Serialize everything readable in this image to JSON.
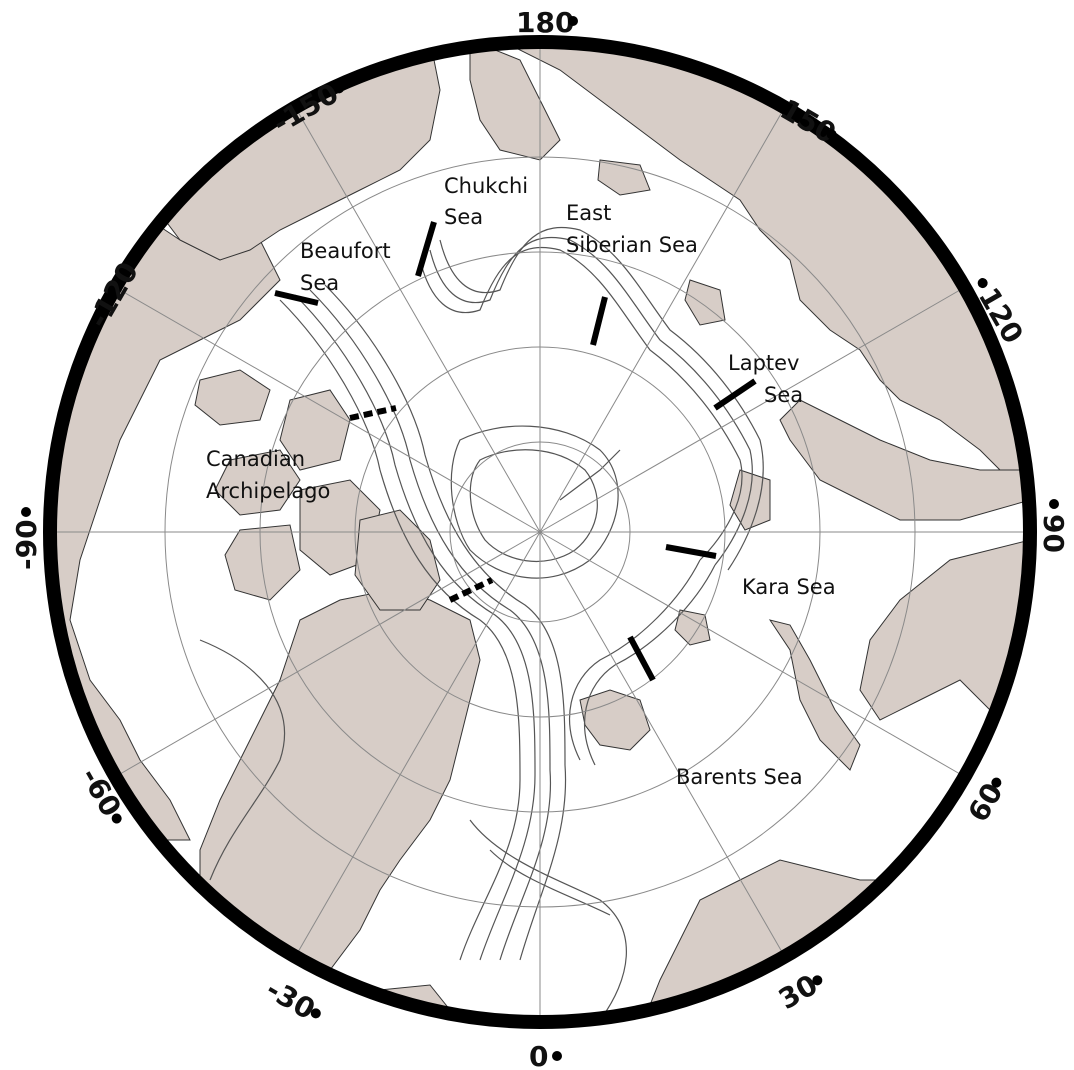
{
  "map": {
    "projection": "north-polar-stereographic",
    "colors": {
      "land": "#d7cdc7",
      "ocean": "#ffffff",
      "grid": "#8a8a8a",
      "contour": "#555555",
      "border": "#000000"
    },
    "longitude_labels": {
      "lon_180": "180",
      "lon_150": "150",
      "lon_120": "120",
      "lon_90": "90",
      "lon_60": "60",
      "lon_30": "30",
      "lon_0": "0",
      "lon_m30": "-30",
      "lon_m60": "-60",
      "lon_m90": "-90",
      "lon_m120": "-120",
      "lon_m150": "-150"
    },
    "seas": {
      "chukchi": [
        "Chukchi",
        "Sea"
      ],
      "east_siberian": [
        "East",
        "Siberian Sea"
      ],
      "beaufort": [
        "Beaufort",
        "Sea"
      ],
      "laptev": [
        "Laptev",
        "Sea"
      ],
      "canadian": [
        "Canadian",
        "Archipelago"
      ],
      "kara": [
        "Kara Sea"
      ],
      "barents": [
        "Barents Sea"
      ]
    }
  }
}
